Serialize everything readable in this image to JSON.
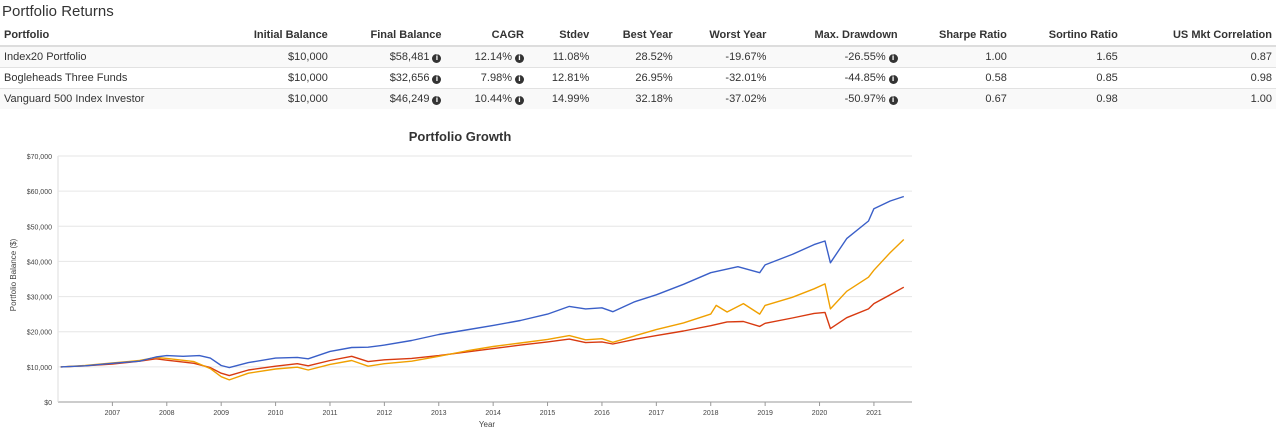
{
  "page": {
    "section_title": "Portfolio Returns"
  },
  "table": {
    "headers": [
      "Portfolio",
      "Initial Balance",
      "Final Balance",
      "CAGR",
      "Stdev",
      "Best Year",
      "Worst Year",
      "Max. Drawdown",
      "Sharpe Ratio",
      "Sortino Ratio",
      "US Mkt Correlation"
    ],
    "info_icon_columns": [
      2,
      3,
      7
    ],
    "rows": [
      [
        "Index20 Portfolio",
        "$10,000",
        "$58,481",
        "12.14%",
        "11.08%",
        "28.52%",
        "-19.67%",
        "-26.55%",
        "1.00",
        "1.65",
        "0.87"
      ],
      [
        "Bogleheads Three Funds",
        "$10,000",
        "$32,656",
        "7.98%",
        "12.81%",
        "26.95%",
        "-32.01%",
        "-44.85%",
        "0.58",
        "0.85",
        "0.98"
      ],
      [
        "Vanguard 500 Index Investor",
        "$10,000",
        "$46,249",
        "10.44%",
        "14.99%",
        "32.18%",
        "-37.02%",
        "-50.97%",
        "0.67",
        "0.98",
        "1.00"
      ]
    ]
  },
  "chart_data": {
    "type": "line",
    "title": "Portfolio Growth",
    "xlabel": "Year",
    "ylabel": "Portfolio Balance ($)",
    "xlim": [
      2006.0,
      2021.7
    ],
    "ylim": [
      0,
      70000
    ],
    "y_ticks": [
      "$0",
      "$10,000",
      "$20,000",
      "$30,000",
      "$40,000",
      "$50,000",
      "$60,000",
      "$70,000"
    ],
    "y_tick_values": [
      0,
      10000,
      20000,
      30000,
      40000,
      50000,
      60000,
      70000
    ],
    "x_ticks": [
      "2007",
      "2008",
      "2009",
      "2010",
      "2011",
      "2012",
      "2013",
      "2014",
      "2015",
      "2016",
      "2017",
      "2018",
      "2019",
      "2020",
      "2021"
    ],
    "x_tick_values": [
      2007,
      2008,
      2009,
      2010,
      2011,
      2012,
      2013,
      2014,
      2015,
      2016,
      2017,
      2018,
      2019,
      2020,
      2021
    ],
    "grid": true,
    "series": [
      {
        "color": "#3a5fc8",
        "points": [
          [
            2006.05,
            10000
          ],
          [
            2006.5,
            10300
          ],
          [
            2007.0,
            11000
          ],
          [
            2007.5,
            11600
          ],
          [
            2007.8,
            12800
          ],
          [
            2008.0,
            13200
          ],
          [
            2008.3,
            13000
          ],
          [
            2008.6,
            13200
          ],
          [
            2008.8,
            12500
          ],
          [
            2009.0,
            10400
          ],
          [
            2009.15,
            9800
          ],
          [
            2009.5,
            11200
          ],
          [
            2010.0,
            12500
          ],
          [
            2010.4,
            12700
          ],
          [
            2010.6,
            12300
          ],
          [
            2011.0,
            14400
          ],
          [
            2011.4,
            15500
          ],
          [
            2011.7,
            15600
          ],
          [
            2012.0,
            16200
          ],
          [
            2012.5,
            17500
          ],
          [
            2013.0,
            19200
          ],
          [
            2013.5,
            20500
          ],
          [
            2014.0,
            21800
          ],
          [
            2014.5,
            23200
          ],
          [
            2015.0,
            25000
          ],
          [
            2015.4,
            27200
          ],
          [
            2015.7,
            26500
          ],
          [
            2016.0,
            26800
          ],
          [
            2016.2,
            25700
          ],
          [
            2016.6,
            28500
          ],
          [
            2017.0,
            30500
          ],
          [
            2017.5,
            33500
          ],
          [
            2018.0,
            36800
          ],
          [
            2018.5,
            38500
          ],
          [
            2018.9,
            36800
          ],
          [
            2019.0,
            39000
          ],
          [
            2019.5,
            42000
          ],
          [
            2019.9,
            44800
          ],
          [
            2020.1,
            45800
          ],
          [
            2020.2,
            39600
          ],
          [
            2020.5,
            46500
          ],
          [
            2020.9,
            51500
          ],
          [
            2021.0,
            55000
          ],
          [
            2021.3,
            57200
          ],
          [
            2021.55,
            58481
          ]
        ]
      },
      {
        "color": "#f0a000",
        "points": [
          [
            2006.05,
            10000
          ],
          [
            2006.5,
            10400
          ],
          [
            2007.0,
            11100
          ],
          [
            2007.5,
            11800
          ],
          [
            2007.8,
            12700
          ],
          [
            2008.0,
            12400
          ],
          [
            2008.5,
            11500
          ],
          [
            2008.8,
            9500
          ],
          [
            2009.0,
            7200
          ],
          [
            2009.15,
            6300
          ],
          [
            2009.5,
            8200
          ],
          [
            2010.0,
            9400
          ],
          [
            2010.4,
            9900
          ],
          [
            2010.6,
            9100
          ],
          [
            2011.0,
            10700
          ],
          [
            2011.4,
            11800
          ],
          [
            2011.7,
            10200
          ],
          [
            2012.0,
            10900
          ],
          [
            2012.5,
            11600
          ],
          [
            2013.0,
            13000
          ],
          [
            2013.5,
            14500
          ],
          [
            2014.0,
            15800
          ],
          [
            2014.5,
            16800
          ],
          [
            2015.0,
            17800
          ],
          [
            2015.4,
            18900
          ],
          [
            2015.7,
            17700
          ],
          [
            2016.0,
            18000
          ],
          [
            2016.2,
            17000
          ],
          [
            2016.6,
            18800
          ],
          [
            2017.0,
            20600
          ],
          [
            2017.5,
            22500
          ],
          [
            2018.0,
            25000
          ],
          [
            2018.1,
            27500
          ],
          [
            2018.3,
            25600
          ],
          [
            2018.6,
            28000
          ],
          [
            2018.9,
            25000
          ],
          [
            2019.0,
            27500
          ],
          [
            2019.5,
            29800
          ],
          [
            2019.9,
            32200
          ],
          [
            2020.1,
            33600
          ],
          [
            2020.2,
            26500
          ],
          [
            2020.5,
            31500
          ],
          [
            2020.9,
            35500
          ],
          [
            2021.0,
            37500
          ],
          [
            2021.3,
            42500
          ],
          [
            2021.55,
            46249
          ]
        ]
      },
      {
        "color": "#d83a10",
        "points": [
          [
            2006.05,
            10000
          ],
          [
            2006.5,
            10300
          ],
          [
            2007.0,
            10800
          ],
          [
            2007.5,
            11600
          ],
          [
            2007.8,
            12300
          ],
          [
            2008.0,
            11900
          ],
          [
            2008.5,
            11000
          ],
          [
            2008.8,
            9800
          ],
          [
            2009.0,
            8200
          ],
          [
            2009.15,
            7500
          ],
          [
            2009.5,
            9100
          ],
          [
            2010.0,
            10200
          ],
          [
            2010.4,
            10900
          ],
          [
            2010.6,
            10300
          ],
          [
            2011.0,
            11800
          ],
          [
            2011.4,
            13000
          ],
          [
            2011.7,
            11500
          ],
          [
            2012.0,
            12000
          ],
          [
            2012.5,
            12400
          ],
          [
            2013.0,
            13200
          ],
          [
            2013.5,
            14200
          ],
          [
            2014.0,
            15200
          ],
          [
            2014.5,
            16200
          ],
          [
            2015.0,
            17100
          ],
          [
            2015.4,
            17900
          ],
          [
            2015.7,
            16900
          ],
          [
            2016.0,
            17100
          ],
          [
            2016.2,
            16500
          ],
          [
            2016.6,
            17800
          ],
          [
            2017.0,
            18900
          ],
          [
            2017.5,
            20200
          ],
          [
            2018.0,
            21700
          ],
          [
            2018.3,
            22800
          ],
          [
            2018.6,
            22900
          ],
          [
            2018.9,
            21500
          ],
          [
            2019.0,
            22400
          ],
          [
            2019.5,
            23900
          ],
          [
            2019.9,
            25200
          ],
          [
            2020.1,
            25500
          ],
          [
            2020.2,
            20900
          ],
          [
            2020.5,
            24000
          ],
          [
            2020.9,
            26500
          ],
          [
            2021.0,
            28000
          ],
          [
            2021.3,
            30500
          ],
          [
            2021.55,
            32656
          ]
        ]
      }
    ]
  }
}
